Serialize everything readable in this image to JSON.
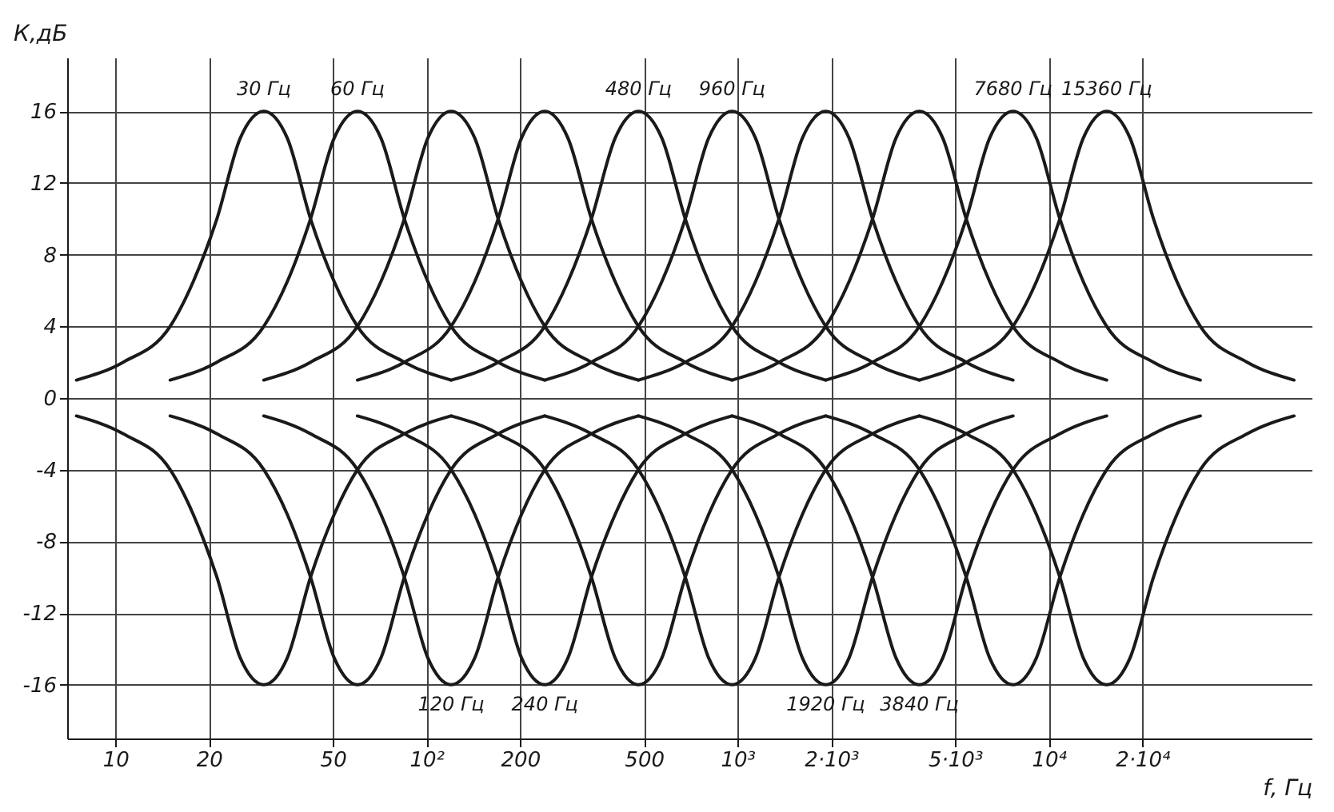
{
  "chart_data": {
    "type": "line",
    "xlabel": "f, Гц",
    "ylabel": "К,дБ",
    "log": "x",
    "grid": true,
    "legend": false,
    "marker": "none",
    "xlim": [
      7,
      70000
    ],
    "ylim": [
      -19,
      19
    ],
    "xticks": [
      10,
      20,
      50,
      {
        "value": 100,
        "label": "10²"
      },
      200,
      500,
      {
        "value": 1000,
        "label": "10³"
      },
      {
        "value": 2000,
        "label": "2·10³"
      },
      {
        "value": 5000,
        "label": "5·10³"
      },
      {
        "value": 10000,
        "label": "10⁴"
      },
      {
        "value": 20000,
        "label": "2·10⁴"
      }
    ],
    "yticks": [
      -16,
      -12,
      -8,
      -4,
      0,
      4,
      8,
      12,
      16
    ],
    "series": [
      {
        "color": "#1a1a1a",
        "x": [
          7.5,
          10.6,
          15,
          17.8,
          21.2,
          25.2,
          30,
          35.7,
          42.4,
          50.5,
          60,
          84.9,
          120
        ],
        "values": [
          1,
          2,
          4,
          6.5,
          10,
          14.5,
          16,
          14.5,
          10,
          6.5,
          4,
          2,
          1
        ]
      },
      {
        "color": "#1a1a1a",
        "x": [
          7.5,
          10.6,
          15,
          17.8,
          21.2,
          25.2,
          30,
          35.7,
          42.4,
          50.5,
          60,
          84.9,
          120
        ],
        "values": [
          -1,
          -2,
          -4,
          -6.5,
          -10,
          -14.5,
          -16,
          -14.5,
          -10,
          -6.5,
          -4,
          -2,
          -1
        ]
      },
      {
        "color": "#1a1a1a",
        "x": [
          15,
          21.2,
          30,
          35.7,
          42.4,
          50.5,
          60,
          71.4,
          84.9,
          101,
          120,
          170,
          240
        ],
        "values": [
          1,
          2,
          4,
          6.5,
          10,
          14.5,
          16,
          14.5,
          10,
          6.5,
          4,
          2,
          1
        ]
      },
      {
        "color": "#1a1a1a",
        "x": [
          15,
          21.2,
          30,
          35.7,
          42.4,
          50.5,
          60,
          71.4,
          84.9,
          101,
          120,
          170,
          240
        ],
        "values": [
          -1,
          -2,
          -4,
          -6.5,
          -10,
          -14.5,
          -16,
          -14.5,
          -10,
          -6.5,
          -4,
          -2,
          -1
        ]
      },
      {
        "color": "#1a1a1a",
        "x": [
          30,
          42.4,
          60,
          71.4,
          84.9,
          101,
          120,
          143,
          170,
          202,
          240,
          339,
          480
        ],
        "values": [
          1,
          2,
          4,
          6.5,
          10,
          14.5,
          16,
          14.5,
          10,
          6.5,
          4,
          2,
          1
        ]
      },
      {
        "color": "#1a1a1a",
        "x": [
          30,
          42.4,
          60,
          71.4,
          84.9,
          101,
          120,
          143,
          170,
          202,
          240,
          339,
          480
        ],
        "values": [
          -1,
          -2,
          -4,
          -6.5,
          -10,
          -14.5,
          -16,
          -14.5,
          -10,
          -6.5,
          -4,
          -2,
          -1
        ]
      },
      {
        "color": "#1a1a1a",
        "x": [
          60,
          84.9,
          120,
          143,
          170,
          202,
          240,
          285,
          339,
          404,
          480,
          679,
          960
        ],
        "values": [
          1,
          2,
          4,
          6.5,
          10,
          14.5,
          16,
          14.5,
          10,
          6.5,
          4,
          2,
          1
        ]
      },
      {
        "color": "#1a1a1a",
        "x": [
          60,
          84.9,
          120,
          143,
          170,
          202,
          240,
          285,
          339,
          404,
          480,
          679,
          960
        ],
        "values": [
          -1,
          -2,
          -4,
          -6.5,
          -10,
          -14.5,
          -16,
          -14.5,
          -10,
          -6.5,
          -4,
          -2,
          -1
        ]
      },
      {
        "color": "#1a1a1a",
        "x": [
          120,
          170,
          240,
          285,
          339,
          404,
          480,
          571,
          679,
          807,
          960,
          1358,
          1920
        ],
        "values": [
          1,
          2,
          4,
          6.5,
          10,
          14.5,
          16,
          14.5,
          10,
          6.5,
          4,
          2,
          1
        ]
      },
      {
        "color": "#1a1a1a",
        "x": [
          120,
          170,
          240,
          285,
          339,
          404,
          480,
          571,
          679,
          807,
          960,
          1358,
          1920
        ],
        "values": [
          -1,
          -2,
          -4,
          -6.5,
          -10,
          -14.5,
          -16,
          -14.5,
          -10,
          -6.5,
          -4,
          -2,
          -1
        ]
      },
      {
        "color": "#1a1a1a",
        "x": [
          240,
          339,
          480,
          571,
          679,
          807,
          960,
          1142,
          1358,
          1615,
          1920,
          2715,
          3840
        ],
        "values": [
          1,
          2,
          4,
          6.5,
          10,
          14.5,
          16,
          14.5,
          10,
          6.5,
          4,
          2,
          1
        ]
      },
      {
        "color": "#1a1a1a",
        "x": [
          240,
          339,
          480,
          571,
          679,
          807,
          960,
          1142,
          1358,
          1615,
          1920,
          2715,
          3840
        ],
        "values": [
          -1,
          -2,
          -4,
          -6.5,
          -10,
          -14.5,
          -16,
          -14.5,
          -10,
          -6.5,
          -4,
          -2,
          -1
        ]
      },
      {
        "color": "#1a1a1a",
        "x": [
          480,
          679,
          960,
          1142,
          1358,
          1615,
          1920,
          2283,
          2715,
          3229,
          3840,
          5431,
          7680
        ],
        "values": [
          1,
          2,
          4,
          6.5,
          10,
          14.5,
          16,
          14.5,
          10,
          6.5,
          4,
          2,
          1
        ]
      },
      {
        "color": "#1a1a1a",
        "x": [
          480,
          679,
          960,
          1142,
          1358,
          1615,
          1920,
          2283,
          2715,
          3229,
          3840,
          5431,
          7680
        ],
        "values": [
          -1,
          -2,
          -4,
          -6.5,
          -10,
          -14.5,
          -16,
          -14.5,
          -10,
          -6.5,
          -4,
          -2,
          -1
        ]
      },
      {
        "color": "#1a1a1a",
        "x": [
          960,
          1358,
          1920,
          2283,
          2715,
          3229,
          3840,
          4567,
          5431,
          6458,
          7680,
          10861,
          15360
        ],
        "values": [
          1,
          2,
          4,
          6.5,
          10,
          14.5,
          16,
          14.5,
          10,
          6.5,
          4,
          2,
          1
        ]
      },
      {
        "color": "#1a1a1a",
        "x": [
          960,
          1358,
          1920,
          2283,
          2715,
          3229,
          3840,
          4567,
          5431,
          6458,
          7680,
          10861,
          15360
        ],
        "values": [
          -1,
          -2,
          -4,
          -6.5,
          -10,
          -14.5,
          -16,
          -14.5,
          -10,
          -6.5,
          -4,
          -2,
          -1
        ]
      },
      {
        "color": "#1a1a1a",
        "x": [
          1920,
          2715,
          3840,
          4567,
          5431,
          6458,
          7680,
          9133,
          10861,
          12916,
          15360,
          21722,
          30720
        ],
        "values": [
          1,
          2,
          4,
          6.5,
          10,
          14.5,
          16,
          14.5,
          10,
          6.5,
          4,
          2,
          1
        ]
      },
      {
        "color": "#1a1a1a",
        "x": [
          1920,
          2715,
          3840,
          4567,
          5431,
          6458,
          7680,
          9133,
          10861,
          12916,
          15360,
          21722,
          30720
        ],
        "values": [
          -1,
          -2,
          -4,
          -6.5,
          -10,
          -14.5,
          -16,
          -14.5,
          -10,
          -6.5,
          -4,
          -2,
          -1
        ]
      },
      {
        "color": "#1a1a1a",
        "x": [
          3840,
          5431,
          7680,
          9133,
          10861,
          12916,
          15360,
          18266,
          21722,
          25831,
          30720,
          43445,
          61440
        ],
        "values": [
          1,
          2,
          4,
          6.5,
          10,
          14.5,
          16,
          14.5,
          10,
          6.5,
          4,
          2,
          1
        ]
      },
      {
        "color": "#1a1a1a",
        "x": [
          3840,
          5431,
          7680,
          9133,
          10861,
          12916,
          15360,
          18266,
          21722,
          25831,
          30720,
          43445,
          61440
        ],
        "values": [
          -1,
          -2,
          -4,
          -6.5,
          -10,
          -14.5,
          -16,
          -14.5,
          -10,
          -6.5,
          -4,
          -2,
          -1
        ]
      }
    ],
    "annotations": [
      {
        "text": "30 Гц",
        "x": 30,
        "y": 16
      },
      {
        "text": "60 Гц",
        "x": 60,
        "y": 16
      },
      {
        "text": "120 Гц",
        "x": 120,
        "y": -16
      },
      {
        "text": "240 Гц",
        "x": 240,
        "y": -16
      },
      {
        "text": "480 Гц",
        "x": 480,
        "y": 16
      },
      {
        "text": "960 Гц",
        "x": 960,
        "y": 16
      },
      {
        "text": "1920 Гц",
        "x": 1920,
        "y": -16
      },
      {
        "text": "3840 Гц",
        "x": 3840,
        "y": -16
      },
      {
        "text": "7680 Гц",
        "x": 7680,
        "y": 16
      },
      {
        "text": "15360 Гц",
        "x": 15360,
        "y": 16
      }
    ]
  }
}
